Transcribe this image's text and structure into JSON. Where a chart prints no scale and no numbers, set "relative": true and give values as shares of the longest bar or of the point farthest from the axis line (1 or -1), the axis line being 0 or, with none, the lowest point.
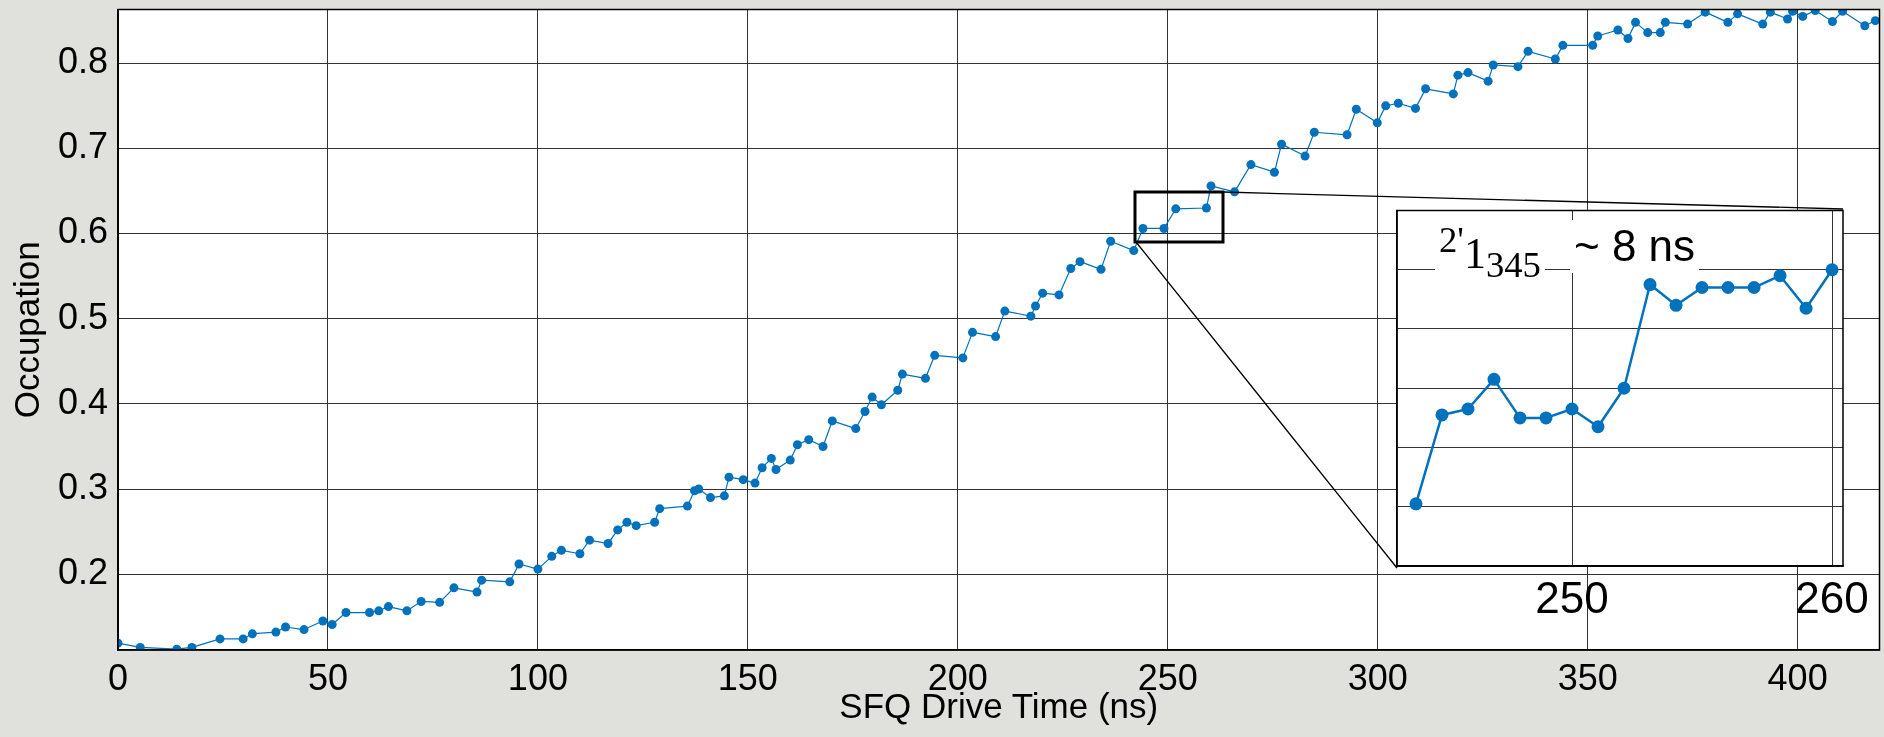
{
  "chart_data": [
    {
      "type": "line",
      "xlabel": "SFQ Drive Time (ns)",
      "ylabel": "Occupation",
      "color": "#0072bd",
      "marker": "circle",
      "grid": true,
      "xlim": [
        0,
        419.5
      ],
      "xticks": [
        0,
        50,
        100,
        150,
        200,
        250,
        300,
        350,
        400
      ],
      "ylim": [
        0.111,
        0.863
      ],
      "yticks": [
        0.2,
        0.3,
        0.4,
        0.5,
        0.6,
        0.7,
        0.8
      ],
      "x": [
        0,
        5.3,
        14,
        17.6,
        24.3,
        29.8,
        32,
        37.6,
        39.9,
        44.3,
        48.8,
        51,
        54.3,
        59.9,
        62.1,
        64.4,
        68.8,
        72.2,
        76.6,
        80,
        85.5,
        86.6,
        93.3,
        95.5,
        100,
        103.3,
        105.6,
        110,
        112.3,
        116.7,
        119,
        121.2,
        123.4,
        127.8,
        129,
        135.6,
        137.3,
        138.3,
        141.1,
        144.4,
        145.5,
        148.9,
        151.7,
        153.4,
        155.6,
        156.7,
        160.1,
        161.8,
        164.5,
        167.9,
        170.1,
        175.7,
        177.9,
        179.6,
        181.8,
        185.7,
        186.8,
        192.3,
        194.5,
        201.2,
        203.5,
        209,
        211.2,
        217.4,
        218.5,
        220.2,
        224.1,
        226.9,
        229.1,
        234.1,
        236.4,
        241.9,
        244.1,
        249.1,
        251.9,
        259.2,
        260.3,
        265.9,
        269.8,
        275.4,
        277.1,
        282.7,
        284.9,
        292.7,
        294.9,
        299.9,
        301.9,
        304.9,
        309,
        311.4,
        318,
        319.1,
        321.5,
        326.3,
        327.5,
        333.4,
        335.8,
        342.3,
        344.1,
        351.2,
        352.4,
        357.2,
        359.6,
        361.4,
        364.3,
        367.3,
        368.5,
        373.8,
        378,
        383.4,
        385.7,
        391.7,
        393.5,
        397.6,
        398.8,
        401.2,
        404.2,
        408.3,
        410.7,
        416,
        418.5
      ],
      "values": [
        0.119,
        0.114,
        0.112,
        0.114,
        0.124,
        0.124,
        0.13,
        0.132,
        0.138,
        0.135,
        0.145,
        0.141,
        0.155,
        0.155,
        0.157,
        0.162,
        0.157,
        0.168,
        0.167,
        0.184,
        0.179,
        0.193,
        0.191,
        0.212,
        0.206,
        0.221,
        0.228,
        0.224,
        0.24,
        0.236,
        0.252,
        0.261,
        0.257,
        0.261,
        0.277,
        0.28,
        0.298,
        0.3,
        0.29,
        0.292,
        0.314,
        0.311,
        0.307,
        0.325,
        0.336,
        0.323,
        0.334,
        0.352,
        0.358,
        0.35,
        0.38,
        0.371,
        0.391,
        0.408,
        0.399,
        0.416,
        0.435,
        0.43,
        0.457,
        0.454,
        0.484,
        0.479,
        0.509,
        0.503,
        0.515,
        0.53,
        0.528,
        0.559,
        0.567,
        0.558,
        0.591,
        0.58,
        0.606,
        0.606,
        0.629,
        0.63,
        0.656,
        0.649,
        0.681,
        0.672,
        0.705,
        0.691,
        0.719,
        0.716,
        0.746,
        0.73,
        0.75,
        0.753,
        0.747,
        0.77,
        0.764,
        0.786,
        0.789,
        0.779,
        0.798,
        0.796,
        0.814,
        0.805,
        0.821,
        0.821,
        0.832,
        0.839,
        0.829,
        0.848,
        0.836,
        0.836,
        0.848,
        0.846,
        0.86,
        0.848,
        0.858,
        0.846,
        0.86,
        0.852,
        0.861,
        0.855,
        0.862,
        0.849,
        0.861,
        0.844,
        0.85
      ]
    },
    {
      "type": "line",
      "color": "#0072bd",
      "marker": "circle",
      "grid": true,
      "relative": true,
      "tick_labels": "x",
      "xlim": [
        243.27,
        260.42
      ],
      "xticks": [
        250,
        260
      ],
      "x": [
        244,
        245,
        246,
        247,
        248,
        249,
        250,
        251,
        252,
        253,
        254,
        255,
        256,
        257,
        258,
        259,
        260
      ],
      "values": [
        0.21,
        0.51,
        0.53,
        0.63,
        0.5,
        0.5,
        0.53,
        0.47,
        0.6,
        0.95,
        0.88,
        0.94,
        0.94,
        0.94,
        0.98,
        0.87,
        1
      ],
      "annotations": [
        "$^{2'}$1$_{345}$",
        "~ 8 ns"
      ]
    }
  ]
}
